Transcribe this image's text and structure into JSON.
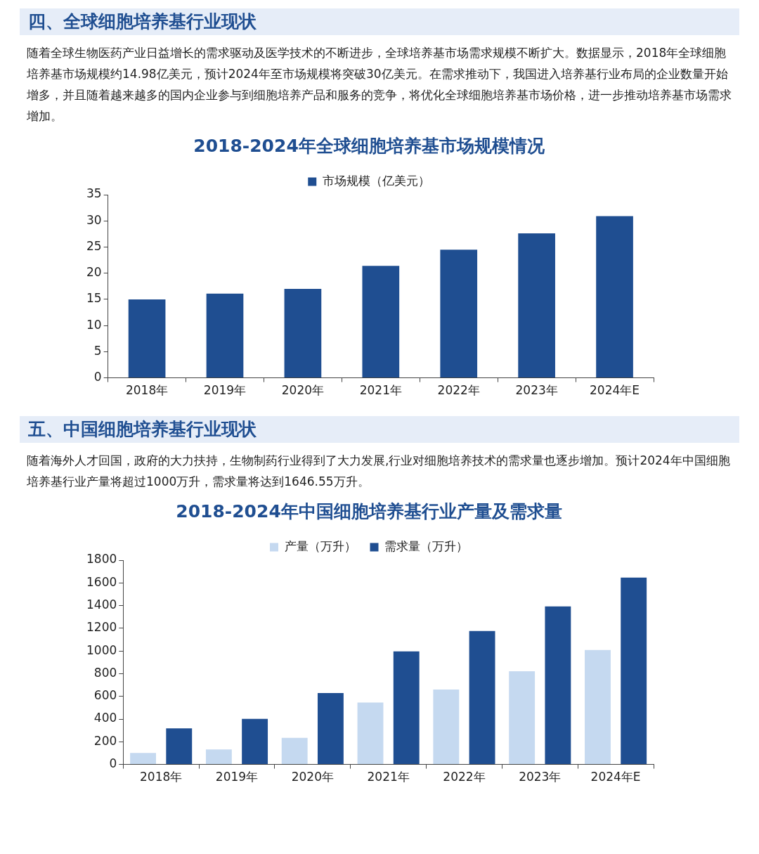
{
  "chart_data": [
    {
      "type": "bar",
      "title": "2018-2024年全球细胞培养基市场规模情况",
      "annotations": [
        "四、全球细胞培养基行业现状",
        "随着全球生物医药产业日益增长的需求驱动及医学技术的不断进步，全球培养基市场需求规模不断扩大。数据显示，2018年全球细胞培养基市场规模约14.98亿美元，预计2024年至市场规模将突破30亿美元。在需求推动下，我国进入培养基行业布局的企业数量开始增多，并且随着越来越多的国内企业参与到细胞培养产品和服务的竞争，将优化全球细胞培养基市场价格，进一步推动培养基市场需求增加。"
      ],
      "categories": [
        "2018年",
        "2019年",
        "2020年",
        "2021年",
        "2022年",
        "2023年",
        "2024年E"
      ],
      "series": [
        {
          "name": "市场规模（亿美元）",
          "color": "#1f4e91",
          "values": [
            15.0,
            16.1,
            17.0,
            21.4,
            24.5,
            27.6,
            30.9
          ]
        }
      ],
      "ylim": [
        0,
        35
      ],
      "yticks": [
        0,
        5,
        10,
        15,
        20,
        25,
        30,
        35
      ],
      "grid": false,
      "legend": "top"
    },
    {
      "type": "bar",
      "title": "2018-2024年中国细胞培养基行业产量及需求量",
      "annotations": [
        "五、中国细胞培养基行业现状",
        "随着海外人才回国，政府的大力扶持，生物制药行业得到了大力发展,行业对细胞培养技术的需求量也逐步增加。预计2024年中国细胞培养基行业产量将超过1000万升，需求量将达到1646.55万升。"
      ],
      "categories": [
        "2018年",
        "2019年",
        "2020年",
        "2021年",
        "2022年",
        "2023年",
        "2024年E"
      ],
      "series": [
        {
          "name": "产量（万升）",
          "color": "#c5d9f0",
          "values": [
            102,
            132,
            234,
            546,
            660,
            822,
            1008
          ]
        },
        {
          "name": "需求量（万升）",
          "color": "#1f4e91",
          "values": [
            318,
            402,
            630,
            996,
            1176,
            1392,
            1647
          ]
        }
      ],
      "ylim": [
        0,
        1800
      ],
      "yticks": [
        0,
        200,
        400,
        600,
        800,
        1000,
        1200,
        1400,
        1600,
        1800
      ],
      "grid": false,
      "legend": "top"
    }
  ]
}
